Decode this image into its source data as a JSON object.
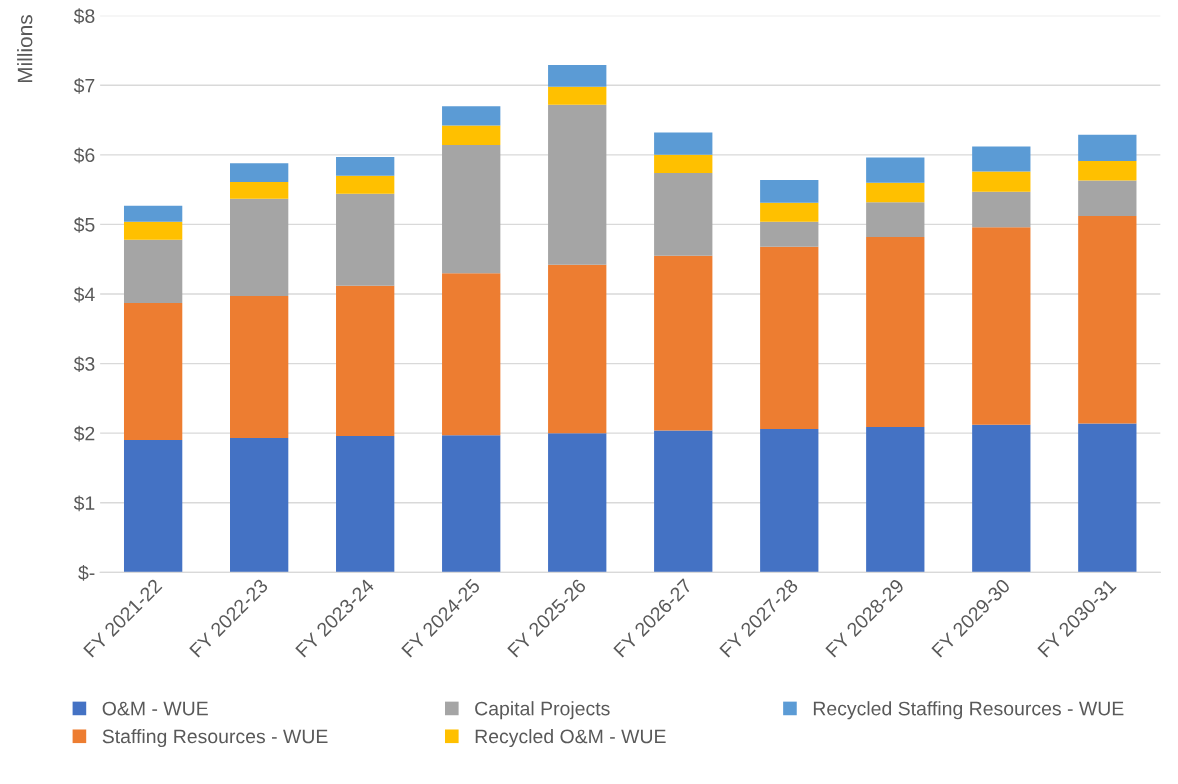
{
  "chart_data": {
    "type": "bar",
    "stacked": true,
    "ylabel": "Millions",
    "categories": [
      "FY 2021-22",
      "FY 2022-23",
      "FY 2023-24",
      "FY 2024-25",
      "FY 2025-26",
      "FY 2026-27",
      "FY 2027-28",
      "FY 2028-29",
      "FY 2029-30",
      "FY 2030-31"
    ],
    "series": [
      {
        "name": "O&M - WUE",
        "color": "#4472c4",
        "values": [
          1.9,
          1.93,
          1.96,
          1.97,
          2.0,
          2.04,
          2.06,
          2.09,
          2.12,
          2.14
        ]
      },
      {
        "name": "Staffing Resources - WUE",
        "color": "#ed7d31",
        "values": [
          1.97,
          2.04,
          2.16,
          2.33,
          2.42,
          2.51,
          2.62,
          2.73,
          2.84,
          2.98
        ]
      },
      {
        "name": "Capital Projects",
        "color": "#a5a5a5",
        "values": [
          0.91,
          1.4,
          1.32,
          1.84,
          2.3,
          1.19,
          0.36,
          0.5,
          0.51,
          0.51
        ]
      },
      {
        "name": "Recycled O&M - WUE",
        "color": "#ffc000",
        "values": [
          0.26,
          0.24,
          0.26,
          0.28,
          0.26,
          0.26,
          0.27,
          0.28,
          0.29,
          0.28
        ]
      },
      {
        "name": "Recycled Staffing Resources - WUE",
        "color": "#5b9bd5",
        "values": [
          0.23,
          0.27,
          0.27,
          0.28,
          0.31,
          0.32,
          0.33,
          0.36,
          0.36,
          0.38
        ]
      }
    ],
    "ylim": [
      0,
      8
    ],
    "yticks": [
      {
        "value": 0,
        "label": "$-"
      },
      {
        "value": 1,
        "label": "$1"
      },
      {
        "value": 2,
        "label": "$2"
      },
      {
        "value": 3,
        "label": "$3"
      },
      {
        "value": 4,
        "label": "$4"
      },
      {
        "value": 5,
        "label": "$5"
      },
      {
        "value": 6,
        "label": "$6"
      },
      {
        "value": 7,
        "label": "$7"
      },
      {
        "value": 8,
        "label": "$8"
      }
    ],
    "grid": "y",
    "legend": "bottom"
  }
}
